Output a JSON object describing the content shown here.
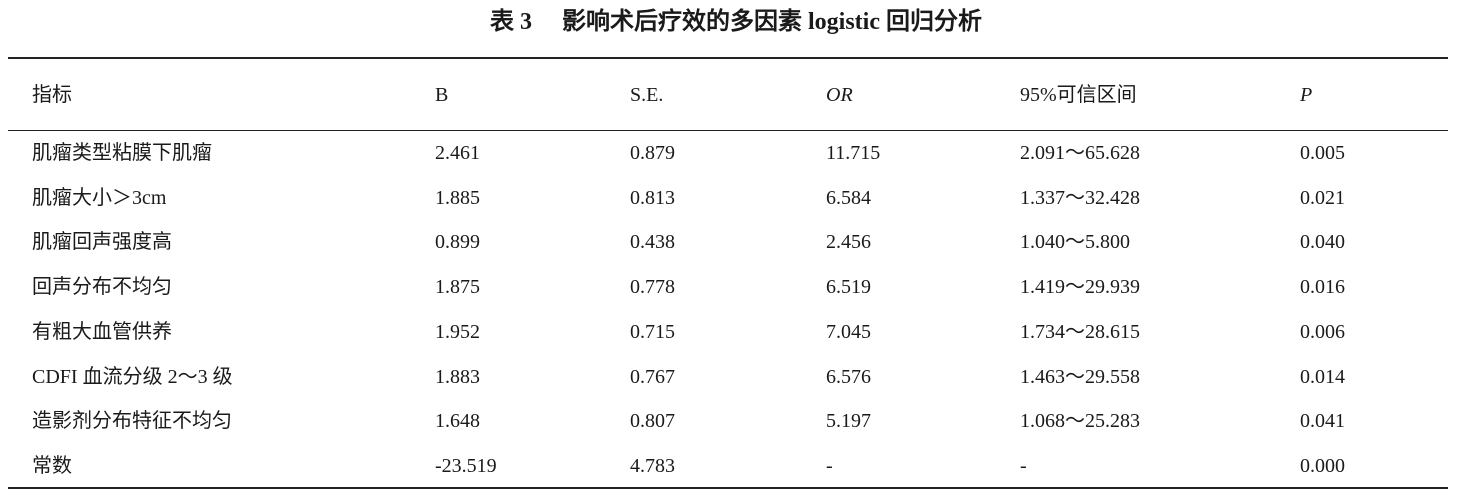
{
  "title": {
    "label": "表 3",
    "text": "影响术后疗效的多因素 logistic 回归分析"
  },
  "table": {
    "header": [
      "指标",
      "B",
      "S.E.",
      "OR",
      "95%可信区间",
      "P"
    ],
    "rows": [
      [
        "肌瘤类型粘膜下肌瘤",
        "2.461",
        "0.879",
        "11.715",
        "2.091～65.628",
        "0.005"
      ],
      [
        "肌瘤大小＞3cm",
        "1.885",
        "0.813",
        "6.584",
        "1.337～32.428",
        "0.021"
      ],
      [
        "肌瘤回声强度高",
        "0.899",
        "0.438",
        "2.456",
        "1.040～5.800",
        "0.040"
      ],
      [
        "回声分布不均匀",
        "1.875",
        "0.778",
        "6.519",
        "1.419～29.939",
        "0.016"
      ],
      [
        "有粗大血管供养",
        "1.952",
        "0.715",
        "7.045",
        "1.734～28.615",
        "0.006"
      ],
      [
        "CDFI 血流分级 2～3 级",
        "1.883",
        "0.767",
        "6.576",
        "1.463～29.558",
        "0.014"
      ],
      [
        "造影剂分布特征不均匀",
        "1.648",
        "0.807",
        "5.197",
        "1.068～25.283",
        "0.041"
      ],
      [
        "常数",
        "-23.519",
        "4.783",
        "-",
        "-",
        "0.000"
      ]
    ]
  }
}
